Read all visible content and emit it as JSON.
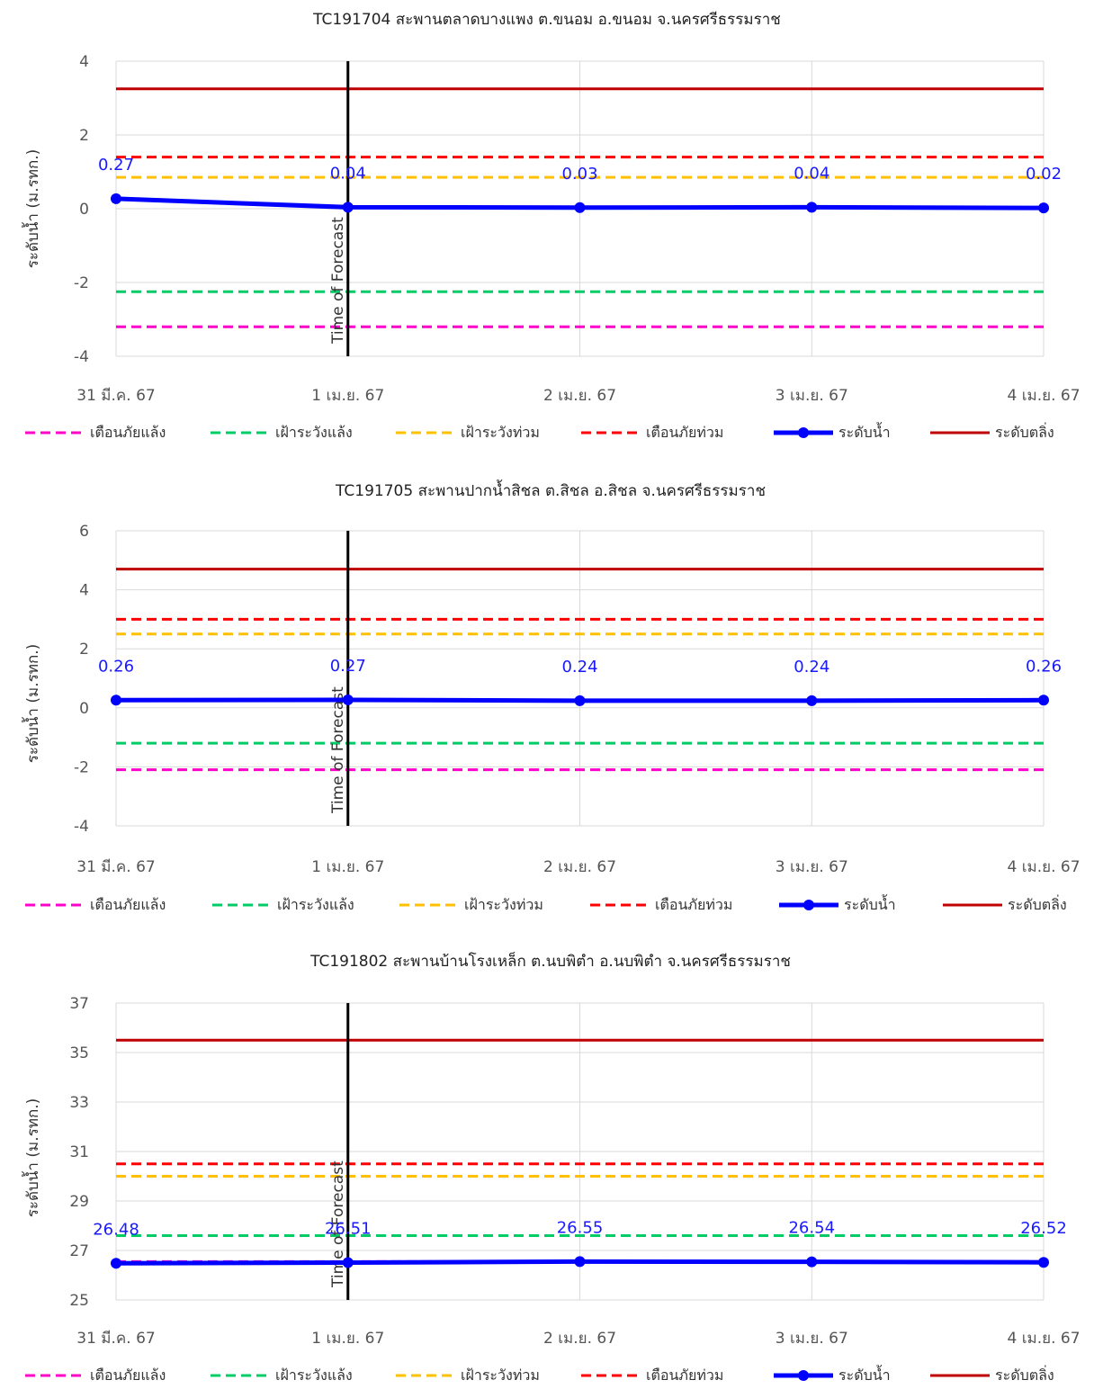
{
  "shared": {
    "ylabel": "ระดับน้ำ (ม.รทก.)",
    "time_of_forecast_label": "Time of Forecast",
    "legend": [
      {
        "label": "เตือนภัยแล้ง",
        "color": "#ff00cc",
        "style": "dashed"
      },
      {
        "label": "เฝ้าระวังแล้ง",
        "color": "#00cc66",
        "style": "dashed"
      },
      {
        "label": "เฝ้าระวังท่วม",
        "color": "#ffc000",
        "style": "dashed"
      },
      {
        "label": "เตือนภัยท่วม",
        "color": "#ff0000",
        "style": "dashed"
      },
      {
        "label": "ระดับน้ำ",
        "color": "#0000ff",
        "style": "line-marker"
      },
      {
        "label": "ระดับตลิ่ง",
        "color": "#c00000",
        "style": "solid"
      }
    ]
  },
  "chart_data": [
    {
      "type": "line",
      "title": "TC191704 สะพานตลาดบางแพง ต.ขนอม อ.ขนอม จ.นครศรีธรรมราช",
      "ylabel": "ระดับน้ำ (ม.รทก.)",
      "categories": [
        "31 มี.ค. 67",
        "1 เม.ย. 67",
        "2 เม.ย. 67",
        "3 เม.ย. 67",
        "4 เม.ย. 67"
      ],
      "ylim": [
        -4,
        4
      ],
      "yticks": [
        4,
        2,
        0,
        -2,
        -4
      ],
      "forecast_category": "1 เม.ย. 67",
      "series": [
        {
          "name": "ระดับน้ำ",
          "values": [
            0.27,
            0.04,
            0.03,
            0.04,
            0.02
          ],
          "labels": [
            "0.27",
            "0.04",
            "0.03",
            "0.04",
            "0.02"
          ]
        }
      ],
      "thresholds": [
        {
          "name": "เตือนภัยแล้ง",
          "value": -3.2
        },
        {
          "name": "เฝ้าระวังแล้ง",
          "value": -2.25
        },
        {
          "name": "เฝ้าระวังท่วม",
          "value": 0.85
        },
        {
          "name": "เตือนภัยท่วม",
          "value": 1.4
        },
        {
          "name": "ระดับตลิ่ง",
          "value": 3.25
        }
      ]
    },
    {
      "type": "line",
      "title": "TC191705 สะพานปากน้ำสิชล ต.สิชล อ.สิชล จ.นครศรีธรรมราช",
      "ylabel": "ระดับน้ำ (ม.รทก.)",
      "categories": [
        "31 มี.ค. 67",
        "1 เม.ย. 67",
        "2 เม.ย. 67",
        "3 เม.ย. 67",
        "4 เม.ย. 67"
      ],
      "ylim": [
        -4,
        6
      ],
      "yticks": [
        6,
        4,
        2,
        0,
        -2,
        -4
      ],
      "forecast_category": "1 เม.ย. 67",
      "series": [
        {
          "name": "ระดับน้ำ",
          "values": [
            0.26,
            0.27,
            0.24,
            0.24,
            0.26
          ],
          "labels": [
            "0.26",
            "0.27",
            "0.24",
            "0.24",
            "0.26"
          ]
        }
      ],
      "thresholds": [
        {
          "name": "เตือนภัยแล้ง",
          "value": -2.1
        },
        {
          "name": "เฝ้าระวังแล้ง",
          "value": -1.2
        },
        {
          "name": "เฝ้าระวังท่วม",
          "value": 2.5
        },
        {
          "name": "เตือนภัยท่วม",
          "value": 3.0
        },
        {
          "name": "ระดับตลิ่ง",
          "value": 4.7
        }
      ]
    },
    {
      "type": "line",
      "title": "TC191802 สะพานบ้านโรงเหล็ก ต.นบพิตำ อ.นบพิตำ จ.นครศรีธรรมราช",
      "ylabel": "ระดับน้ำ (ม.รทก.)",
      "categories": [
        "31 มี.ค. 67",
        "1 เม.ย. 67",
        "2 เม.ย. 67",
        "3 เม.ย. 67",
        "4 เม.ย. 67"
      ],
      "ylim": [
        25,
        37
      ],
      "yticks": [
        37,
        35,
        33,
        31,
        29,
        27,
        25
      ],
      "forecast_category": "1 เม.ย. 67",
      "series": [
        {
          "name": "ระดับน้ำ",
          "values": [
            26.48,
            26.51,
            26.55,
            26.54,
            26.52
          ],
          "labels": [
            "26.48",
            "26.51",
            "26.55",
            "26.54",
            "26.52"
          ]
        }
      ],
      "thresholds": [
        {
          "name": "เตือนภัยแล้ง",
          "value": 26.55
        },
        {
          "name": "เฝ้าระวังแล้ง",
          "value": 27.6
        },
        {
          "name": "เฝ้าระวังท่วม",
          "value": 30.0
        },
        {
          "name": "เตือนภัยท่วม",
          "value": 30.5
        },
        {
          "name": "ระดับตลิ่ง",
          "value": 35.5
        }
      ]
    }
  ]
}
